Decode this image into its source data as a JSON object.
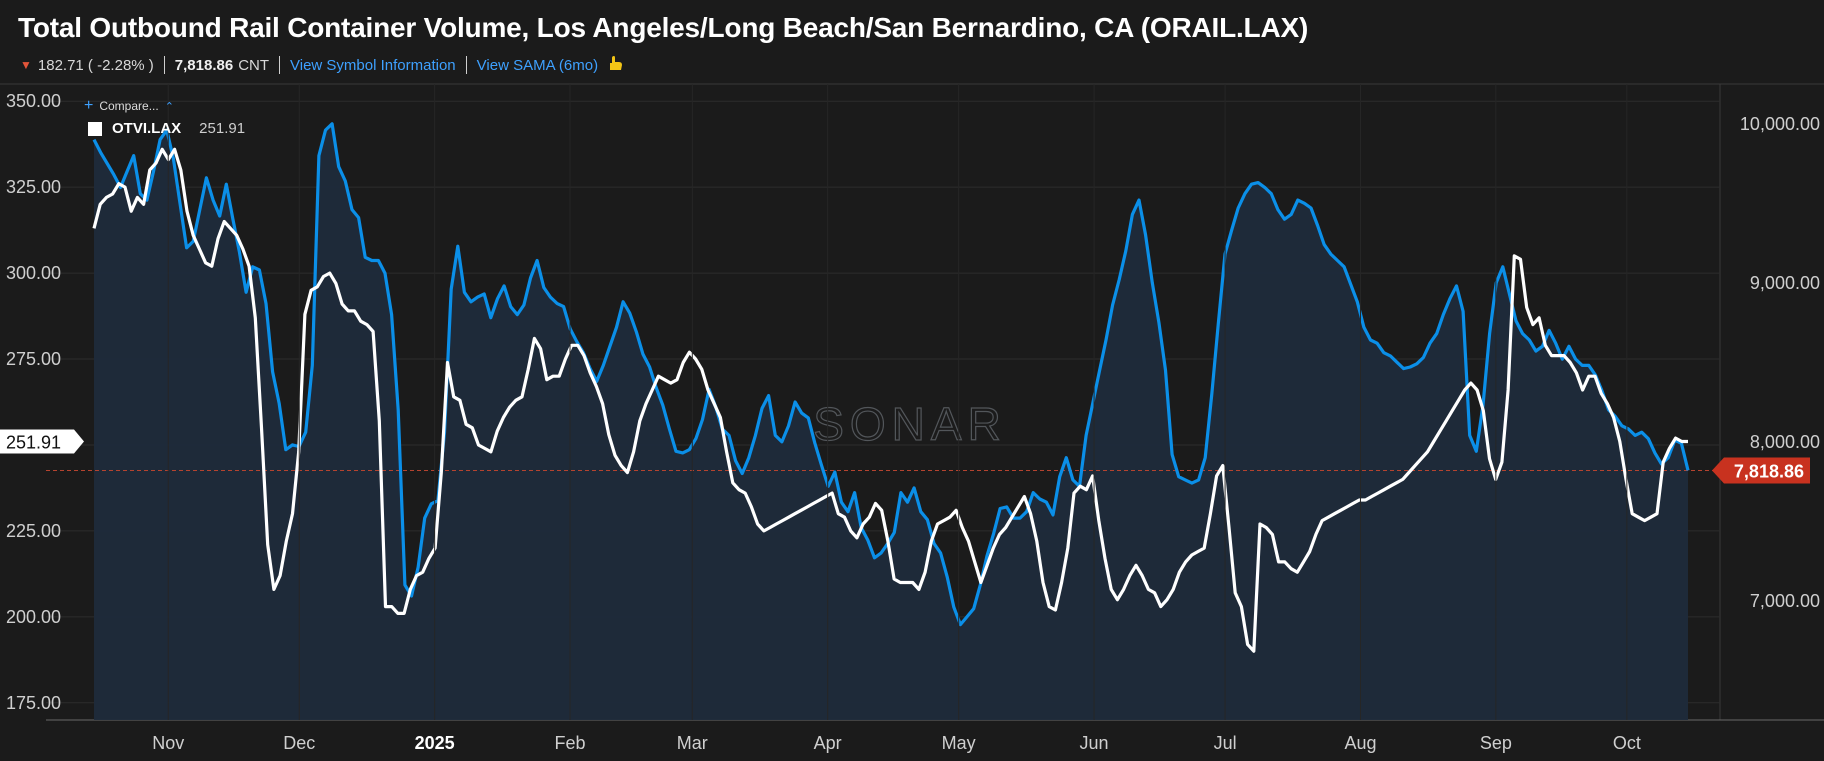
{
  "header": {
    "title": "Total Outbound Rail Container Volume, Los Angeles/Long Beach/San Bernardino, CA (ORAIL.LAX)",
    "change": "182.71 ( -2.28% )",
    "value_text": "7,818.86",
    "unit": "CNT",
    "link_symbol": "View Symbol Information",
    "link_sama": "View SAMA (6mo)"
  },
  "compare_label": "Compare...",
  "legend": {
    "name": "OTVI.LAX",
    "value": "251.91"
  },
  "watermark": "SONAR",
  "colors": {
    "background": "#1b1b1b",
    "primary": "#0b8fe8",
    "secondary": "#ffffff",
    "area_fill": "#1f2b3b",
    "current_badge": "#c8321f",
    "current_line": "#b5432f"
  },
  "chart_data": {
    "type": "line",
    "title": "Total Outbound Rail Container Volume, Los Angeles/Long Beach/San Bernardino, CA (ORAIL.LAX)",
    "x_labels": [
      "Nov",
      "Dec",
      "2025",
      "Feb",
      "Mar",
      "Apr",
      "May",
      "Jun",
      "Jul",
      "Aug",
      "Sep",
      "Oct"
    ],
    "x_start": "2024-10-15",
    "x_end": "2025-10-15",
    "left_axis": {
      "min": 170,
      "max": 355,
      "ticks": [
        "175.00",
        "200.00",
        "225.00",
        "250.00",
        "275.00",
        "300.00",
        "325.00",
        "350.00"
      ],
      "tick_values": [
        175,
        200,
        225,
        250,
        275,
        300,
        325,
        350
      ]
    },
    "right_axis": {
      "min": 6250,
      "max": 10250,
      "ticks": [
        "7,000.00",
        "8,000.00",
        "9,000.00",
        "10,000.00"
      ],
      "tick_values": [
        7000,
        8000,
        9000,
        10000
      ]
    },
    "current_left_label": "251.91",
    "current_right_label": "7,818.86",
    "current_right_value": 7818.86,
    "series": [
      {
        "name": "ORAIL.LAX",
        "axis": "right",
        "values": [
          9900,
          9820,
          9750,
          9680,
          9600,
          9700,
          9800,
          9560,
          9520,
          9700,
          9900,
          9960,
          9780,
          9500,
          9220,
          9260,
          9460,
          9660,
          9520,
          9420,
          9620,
          9400,
          9190,
          8940,
          9100,
          9080,
          8870,
          8440,
          8240,
          7950,
          7980,
          7970,
          8060,
          8480,
          9800,
          9960,
          10000,
          9730,
          9640,
          9460,
          9410,
          9160,
          9140,
          9140,
          9060,
          8800,
          8200,
          7100,
          7030,
          7210,
          7520,
          7610,
          7630,
          8060,
          8960,
          9230,
          8940,
          8880,
          8910,
          8930,
          8780,
          8900,
          8980,
          8850,
          8800,
          8860,
          9030,
          9140,
          8970,
          8910,
          8870,
          8850,
          8710,
          8630,
          8560,
          8460,
          8380,
          8480,
          8600,
          8720,
          8880,
          8810,
          8690,
          8550,
          8470,
          8340,
          8230,
          8080,
          7940,
          7930,
          7950,
          8020,
          8140,
          8330,
          8220,
          8080,
          8040,
          7880,
          7800,
          7900,
          8040,
          8210,
          8290,
          8040,
          8000,
          8100,
          8250,
          8180,
          8150,
          7990,
          7850,
          7720,
          7810,
          7620,
          7560,
          7680,
          7460,
          7380,
          7270,
          7300,
          7360,
          7430,
          7680,
          7620,
          7710,
          7560,
          7510,
          7360,
          7300,
          7150,
          6960,
          6850,
          6900,
          6950,
          7100,
          7280,
          7420,
          7580,
          7590,
          7520,
          7520,
          7560,
          7680,
          7640,
          7620,
          7540,
          7780,
          7900,
          7760,
          7720,
          8040,
          8240,
          8440,
          8640,
          8860,
          9020,
          9200,
          9430,
          9520,
          9300,
          9000,
          8750,
          8450,
          7920,
          7780,
          7760,
          7740,
          7760,
          7900,
          8300,
          8750,
          9180,
          9330,
          9470,
          9560,
          9620,
          9630,
          9600,
          9560,
          9460,
          9400,
          9430,
          9520,
          9500,
          9470,
          9360,
          9240,
          9180,
          9140,
          9100,
          8990,
          8880,
          8720,
          8640,
          8620,
          8560,
          8540,
          8500,
          8460,
          8470,
          8490,
          8530,
          8620,
          8680,
          8800,
          8900,
          8980,
          8820,
          8040,
          7940,
          8230,
          8680,
          9000,
          9100,
          8930,
          8760,
          8680,
          8640,
          8570,
          8600,
          8700,
          8620,
          8520,
          8600,
          8520,
          8480,
          8480,
          8420,
          8320,
          8200,
          8160,
          8100,
          8080,
          8040,
          8060,
          8020,
          7930,
          7860,
          7900,
          8010,
          7990,
          7820
        ]
      },
      {
        "name": "OTVI.LAX",
        "axis": "left",
        "values": [
          313,
          320,
          322,
          323,
          326,
          325,
          318,
          322,
          320,
          330,
          332,
          336,
          333,
          336,
          330,
          318,
          311,
          307,
          303,
          302,
          310,
          315,
          313,
          311,
          307,
          302,
          287,
          255,
          221,
          208,
          212,
          222,
          230,
          248,
          288,
          295,
          296,
          299,
          300,
          297,
          291,
          289,
          289,
          286,
          285,
          283,
          257,
          203,
          203,
          201,
          201,
          208,
          212,
          213,
          217,
          220,
          242,
          274,
          264,
          263,
          256,
          255,
          250,
          249,
          248,
          254,
          258,
          261,
          263,
          264,
          272,
          281,
          278,
          269,
          270,
          270,
          275,
          279,
          279,
          276,
          271,
          267,
          262,
          253,
          247,
          244,
          242,
          248,
          257,
          262,
          266,
          270,
          269,
          268,
          269,
          274,
          277,
          275,
          272,
          266,
          262,
          258,
          248,
          239,
          237,
          236,
          232,
          227,
          225,
          226,
          227,
          228,
          229,
          230,
          231,
          232,
          233,
          234,
          235,
          236,
          230,
          229,
          225,
          223,
          227,
          229,
          233,
          231,
          222,
          211,
          210,
          210,
          210,
          208,
          213,
          222,
          227,
          228,
          229,
          231,
          226,
          222,
          216,
          210,
          215,
          220,
          224,
          226,
          229,
          232,
          235,
          230,
          222,
          210,
          203,
          202,
          210,
          220,
          236,
          238,
          237,
          241,
          228,
          217,
          208,
          205,
          208,
          212,
          215,
          212,
          208,
          207,
          203,
          205,
          208,
          213,
          216,
          218,
          219,
          220,
          230,
          241,
          244,
          226,
          207,
          203,
          192,
          190,
          227,
          226,
          224,
          216,
          216,
          214,
          213,
          216,
          219,
          224,
          228,
          229,
          230,
          231,
          232,
          233,
          234,
          234,
          235,
          236,
          237,
          238,
          239,
          240,
          242,
          244,
          246,
          248,
          251,
          254,
          257,
          260,
          263,
          266,
          268,
          266,
          260,
          246,
          240,
          245,
          266,
          305,
          304,
          290,
          285,
          287,
          279,
          276,
          276,
          276,
          274,
          271,
          266,
          270,
          270,
          265,
          262,
          258,
          251,
          240,
          230,
          229,
          228,
          229,
          230,
          245,
          249,
          252,
          251,
          251
        ]
      }
    ]
  }
}
